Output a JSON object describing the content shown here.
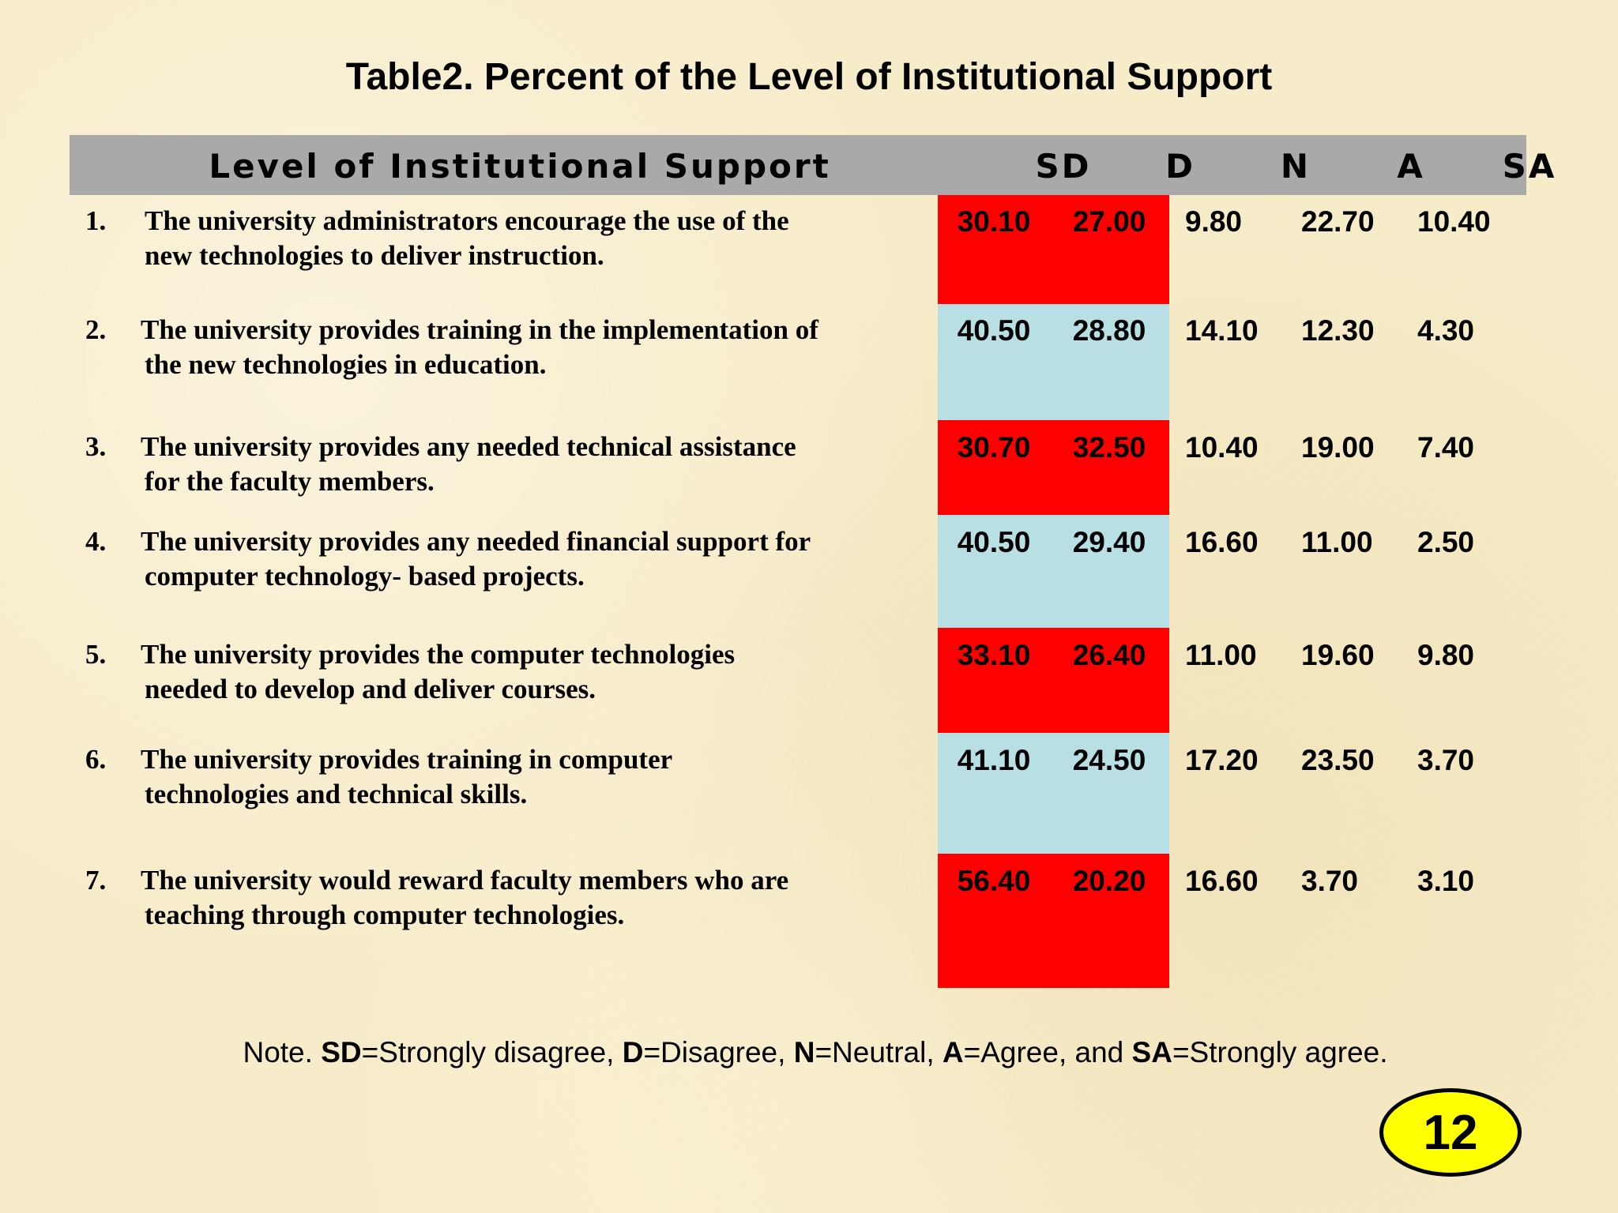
{
  "title": "Table2. Percent of the Level of Institutional Support",
  "table": {
    "header": {
      "label": "Level of Institutional Support",
      "cols": [
        "SD",
        "D",
        "N",
        "A",
        "SA"
      ]
    },
    "rows": [
      {
        "num": "1.",
        "line1": "The university administrators encourage the use of the",
        "line2": "new technologies to deliver instruction.",
        "sd": "30.10",
        "d": "27.00",
        "n": "9.80",
        "a": "22.70",
        "sa": "10.40",
        "band": "red"
      },
      {
        "num": "2.",
        "line1": "The university provides training in the implementation of",
        "line2": "the new technologies in education.",
        "sd": "40.50",
        "d": "28.80",
        "n": "14.10",
        "a": "12.30",
        "sa": "4.30",
        "band": "blue"
      },
      {
        "num": "3.",
        "line1": "The university provides any needed technical assistance",
        "line2": "for the faculty members.",
        "sd": "30.70",
        "d": "32.50",
        "n": "10.40",
        "a": "19.00",
        "sa": "7.40",
        "band": "red"
      },
      {
        "num": "4.",
        "line1": "The university provides any needed financial support for",
        "line2": "computer technology- based projects.",
        "sd": "40.50",
        "d": "29.40",
        "n": "16.60",
        "a": "11.00",
        "sa": "2.50",
        "band": "blue"
      },
      {
        "num": "5.",
        "line1": "The university provides the computer technologies",
        "line2": "needed to develop and deliver courses.",
        "sd": "33.10",
        "d": "26.40",
        "n": "11.00",
        "a": "19.60",
        "sa": "9.80",
        "band": "red"
      },
      {
        "num": "6.",
        "line1": "The university provides training in computer",
        "line2": "technologies and technical skills.",
        "sd": "41.10",
        "d": "24.50",
        "n": "17.20",
        "a": "23.50",
        "sa": "3.70",
        "band": "blue"
      },
      {
        "num": "7.",
        "line1": "The university would reward faculty members who are",
        "line2": "teaching through computer technologies.",
        "sd": "56.40",
        "d": "20.20",
        "n": "16.60",
        "a": "3.70",
        "sa": "3.10",
        "band": "red"
      }
    ]
  },
  "note": {
    "prefix": "Note. ",
    "items": [
      {
        "abbr": "SD",
        "text": "=Strongly disagree, "
      },
      {
        "abbr": "D",
        "text": "=Disagree, "
      },
      {
        "abbr": "N",
        "text": "=Neutral, "
      },
      {
        "abbr": "A",
        "text": "=Agree, and "
      },
      {
        "abbr": "SA",
        "text": "=Strongly agree."
      }
    ]
  },
  "page_number": "12",
  "colors": {
    "band_red": "#ff0000",
    "band_blue": "#b8dfe4",
    "header_gray": "#a9a9a9",
    "badge_yellow": "#ffff00"
  }
}
